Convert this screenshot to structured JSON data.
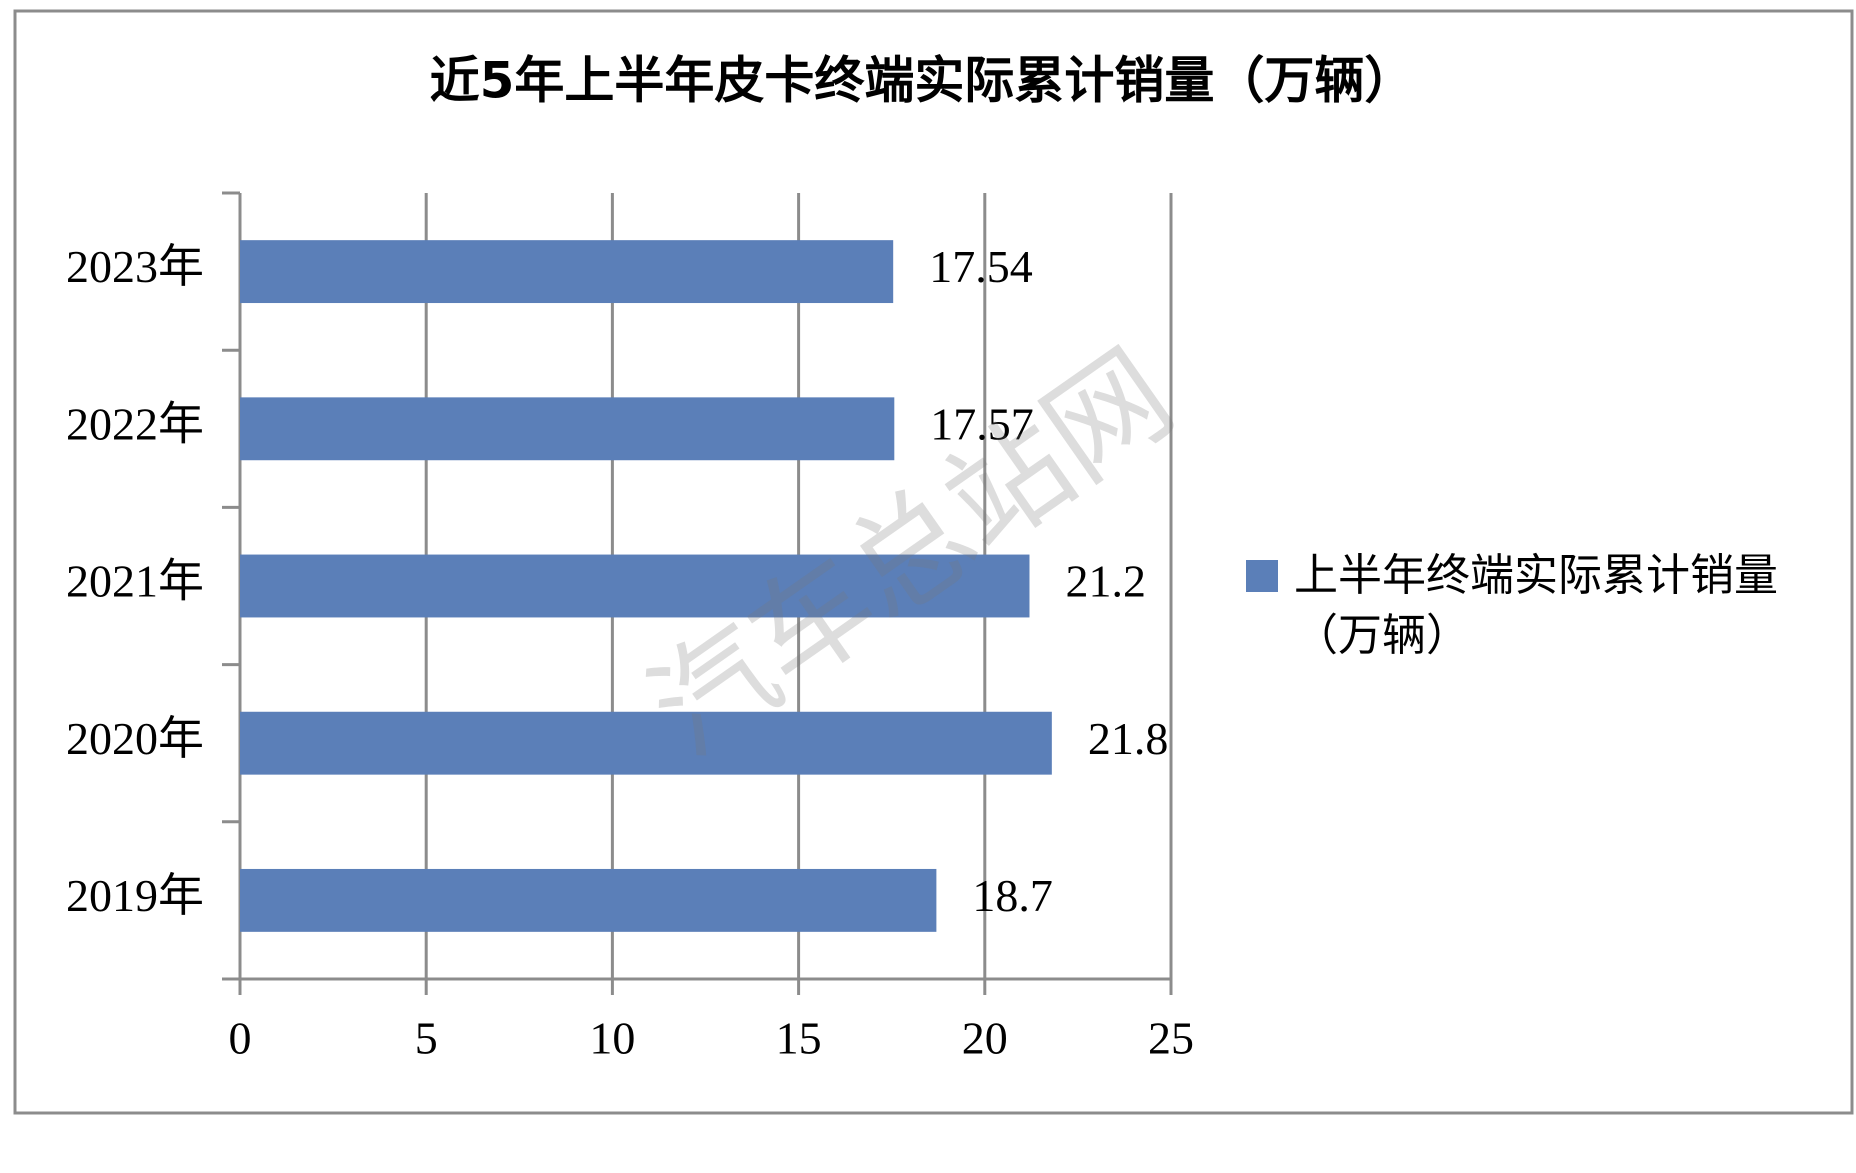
{
  "chart_data": {
    "type": "bar",
    "orientation": "horizontal",
    "title": "近5年上半年皮卡终端实际累计销量（万辆）",
    "categories": [
      "2019年",
      "2020年",
      "2021年",
      "2022年",
      "2023年"
    ],
    "series": [
      {
        "name": "上半年终端实际累计销量（万辆）",
        "color": "#5b7fb8",
        "values": [
          18.7,
          21.8,
          21.2,
          17.57,
          17.54
        ]
      }
    ],
    "xlim": [
      0,
      25
    ],
    "xticks": [
      0,
      5,
      10,
      15,
      20,
      25
    ],
    "grid": true,
    "legend": "right",
    "watermark": "汽车总站网"
  }
}
